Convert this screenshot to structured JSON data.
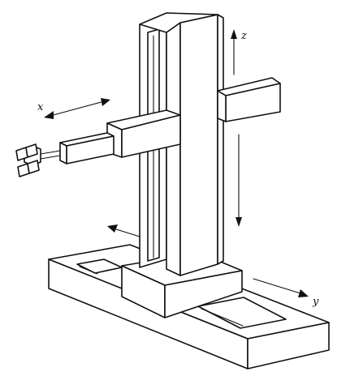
{
  "diagram": {
    "axis_labels": {
      "x": "x",
      "y": "y",
      "z": "z"
    }
  },
  "colors": {
    "ink": "#111111",
    "background": "#ffffff"
  }
}
